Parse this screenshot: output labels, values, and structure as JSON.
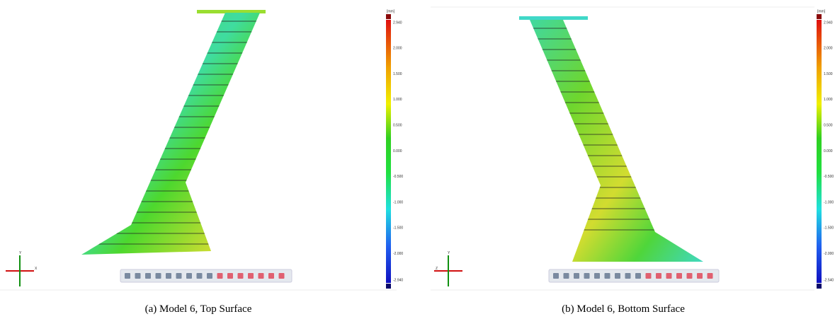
{
  "panels": [
    {
      "caption": "(a) Model 6, Top Surface",
      "unit": "[mm]",
      "scale_labels": [
        "2.940",
        "2.000",
        "1.500",
        "1.000",
        "0.500",
        "0.000",
        "-0.500",
        "-1.000",
        "-1.500",
        "-2.000",
        "-2.940"
      ],
      "axis_labels": [
        "Y",
        "X"
      ]
    },
    {
      "caption": "(b) Model 6, Bottom Surface",
      "unit": "[mm]",
      "scale_labels": [
        "2.940",
        "2.000",
        "1.500",
        "1.000",
        "0.500",
        "0.000",
        "-0.500",
        "-1.000",
        "-1.500",
        "-2.000",
        "-2.540"
      ],
      "axis_labels": [
        "Y",
        "Z"
      ]
    }
  ]
}
